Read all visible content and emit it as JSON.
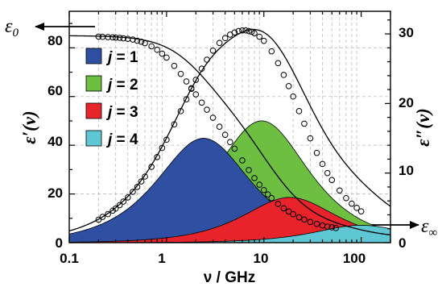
{
  "chart_data": {
    "type": "area",
    "x_axis": {
      "label": "ν / GHz",
      "scale": "log",
      "range": [
        0.1,
        200
      ],
      "ticks": [
        0.1,
        1,
        10,
        100
      ],
      "tick_labels": [
        "0.1",
        "1",
        "10",
        "100"
      ]
    },
    "y_axis_left": {
      "label_symbol": "ε",
      "label_suffix": "′(ν)",
      "range": [
        0,
        95
      ],
      "ticks": [
        0,
        20,
        40,
        60,
        80
      ],
      "tick_labels": [
        "0",
        "20",
        "40",
        "60",
        "80"
      ]
    },
    "y_axis_right": {
      "label_symbol": "ε",
      "label_suffix": "″(ν)",
      "range": [
        0,
        33.25
      ],
      "ticks": [
        0,
        10,
        20,
        30
      ],
      "tick_labels": [
        "0",
        "10",
        "20",
        "30"
      ]
    },
    "annotations": {
      "eps0": {
        "symbol": "ε",
        "subscript": "0",
        "side": "left"
      },
      "epsinf": {
        "symbol": "ε",
        "subscript": "∞",
        "side": "right"
      }
    },
    "model": {
      "eps0": 85,
      "epsinf": 2,
      "components": [
        {
          "name": "j = 1",
          "j": "1",
          "delta_eps": 30,
          "peak_ghz": 2.4,
          "color": "#2f4fa3"
        },
        {
          "name": "j = 2",
          "j": "2",
          "delta_eps": 35,
          "peak_ghz": 9.5,
          "color": "#6cbf3f"
        },
        {
          "name": "j = 3",
          "j": "3",
          "delta_eps": 13,
          "peak_ghz": 18.5,
          "color": "#e8232a"
        },
        {
          "name": "j = 4",
          "j": "4",
          "delta_eps": 5,
          "peak_ghz": 100,
          "color": "#5fc7d3"
        }
      ]
    },
    "eps_prime_points": [
      [
        0.2,
        84.6
      ],
      [
        0.22,
        84.5
      ],
      [
        0.25,
        84.4
      ],
      [
        0.28,
        84.3
      ],
      [
        0.3,
        84.2
      ],
      [
        0.33,
        84.1
      ],
      [
        0.36,
        83.9
      ],
      [
        0.4,
        83.7
      ],
      [
        0.45,
        83.4
      ],
      [
        0.5,
        82.9
      ],
      [
        0.55,
        82.5
      ],
      [
        0.6,
        81.9
      ],
      [
        0.7,
        80.6
      ],
      [
        0.8,
        79.2
      ],
      [
        0.9,
        77.6
      ],
      [
        1.0,
        76.0
      ],
      [
        1.2,
        72.6
      ],
      [
        1.4,
        69.3
      ],
      [
        1.6,
        66.2
      ],
      [
        1.8,
        63.4
      ],
      [
        2.0,
        60.9
      ],
      [
        2.3,
        57.5
      ],
      [
        2.6,
        54.6
      ],
      [
        3.0,
        51.3
      ],
      [
        3.5,
        47.6
      ],
      [
        4.0,
        44.3
      ],
      [
        4.5,
        41.3
      ],
      [
        5.0,
        38.6
      ],
      [
        6.0,
        33.8
      ],
      [
        7.0,
        29.8
      ],
      [
        8.0,
        26.5
      ],
      [
        9.0,
        23.8
      ],
      [
        10.0,
        21.6
      ],
      [
        11.0,
        19.8
      ],
      [
        12.0,
        18.3
      ],
      [
        14.0,
        15.9
      ],
      [
        16.0,
        14.1
      ],
      [
        18.0,
        12.8
      ],
      [
        20.0,
        11.7
      ],
      [
        23.0,
        10.4
      ],
      [
        26.0,
        9.5
      ],
      [
        30.0,
        8.5
      ],
      [
        35.0,
        7.7
      ],
      [
        40.0,
        7.1
      ],
      [
        45.0,
        6.6
      ],
      [
        50.0,
        6.3
      ],
      [
        55.0,
        6.0
      ]
    ],
    "eps_double_prime_points": [
      [
        0.2,
        3.3
      ],
      [
        0.22,
        3.7
      ],
      [
        0.25,
        4.1
      ],
      [
        0.28,
        4.6
      ],
      [
        0.3,
        4.9
      ],
      [
        0.33,
        5.4
      ],
      [
        0.36,
        5.9
      ],
      [
        0.4,
        6.5
      ],
      [
        0.45,
        7.3
      ],
      [
        0.5,
        8.0
      ],
      [
        0.55,
        8.8
      ],
      [
        0.6,
        9.5
      ],
      [
        0.7,
        10.9
      ],
      [
        0.8,
        12.3
      ],
      [
        0.9,
        13.6
      ],
      [
        1.0,
        14.8
      ],
      [
        1.2,
        17.0
      ],
      [
        1.4,
        18.9
      ],
      [
        1.6,
        20.6
      ],
      [
        1.8,
        22.1
      ],
      [
        2.0,
        23.4
      ],
      [
        2.3,
        25.0
      ],
      [
        2.6,
        26.3
      ],
      [
        3.0,
        27.6
      ],
      [
        3.5,
        28.7
      ],
      [
        4.0,
        29.4
      ],
      [
        4.5,
        29.9
      ],
      [
        5.0,
        30.2
      ],
      [
        5.5,
        30.4
      ],
      [
        6.0,
        30.5
      ],
      [
        6.5,
        30.5
      ],
      [
        7.0,
        30.4
      ],
      [
        7.5,
        30.3
      ],
      [
        8.0,
        30.1
      ],
      [
        9.0,
        29.6
      ],
      [
        10.0,
        29.0
      ],
      [
        12.0,
        27.5
      ],
      [
        14.0,
        25.8
      ],
      [
        16.0,
        24.1
      ],
      [
        18.0,
        22.5
      ],
      [
        20.0,
        21.0
      ],
      [
        23.0,
        18.9
      ],
      [
        26.0,
        17.1
      ],
      [
        30.0,
        15.0
      ],
      [
        35.0,
        12.9
      ],
      [
        40.0,
        11.3
      ],
      [
        45.0,
        10.0
      ],
      [
        50.0,
        9.0
      ],
      [
        60.0,
        7.5
      ],
      [
        70.0,
        6.4
      ],
      [
        80.0,
        5.6
      ],
      [
        90.0,
        5.0
      ],
      [
        100.0,
        4.5
      ]
    ],
    "grid": true,
    "legend_placement": "top-left"
  }
}
